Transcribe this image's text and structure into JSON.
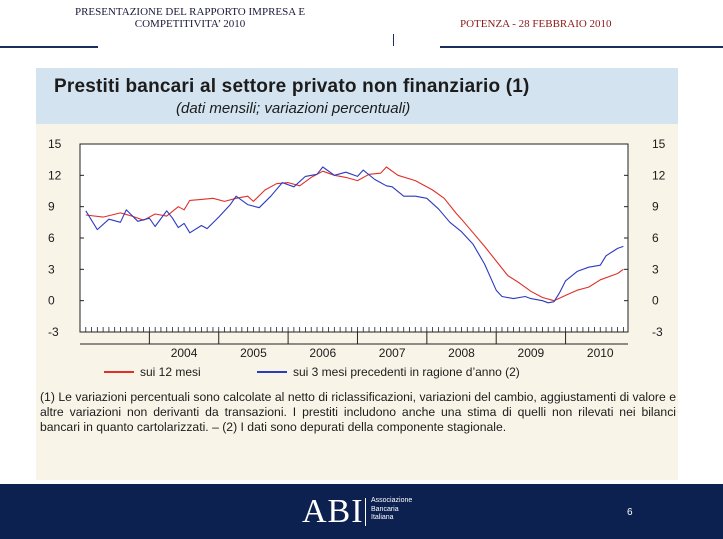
{
  "header": {
    "left_line1": "PRESENTAZIONE DEL RAPPORTO IMPRESA E",
    "left_line2": "COMPETITIVITA’ 2010",
    "right": "POTENZA  - 28 FEBBRAIO 2010"
  },
  "chart_data": {
    "type": "line",
    "title": "Prestiti bancari al settore privato non finanziario (1)",
    "subtitle": "(dati mensili; variazioni percentuali)",
    "xlabel": "",
    "ylabel": "",
    "ylim": [
      -3,
      15
    ],
    "yticks": [
      "15",
      "12",
      "9",
      "6",
      "3",
      "0",
      "-3"
    ],
    "xlim": [
      2003.5,
      2010.75
    ],
    "xticks": [
      {
        "label": "2004",
        "x": 2004.5
      },
      {
        "label": "2005",
        "x": 2005.5
      },
      {
        "label": "2006",
        "x": 2006.5
      },
      {
        "label": "2007",
        "x": 2007.5
      },
      {
        "label": "2008",
        "x": 2008.5
      },
      {
        "label": "2009",
        "x": 2009.5
      },
      {
        "label": "2010",
        "x": 2010.5
      }
    ],
    "grid": false,
    "legend_position": "bottom",
    "series": [
      {
        "name": "sui 12 mesi",
        "color": "#e0302a",
        "points": [
          [
            2003.583,
            8.2
          ],
          [
            2003.833,
            8.0
          ],
          [
            2004.083,
            8.4
          ],
          [
            2004.25,
            8.1
          ],
          [
            2004.417,
            7.7
          ],
          [
            2004.583,
            8.3
          ],
          [
            2004.75,
            8.1
          ],
          [
            2004.917,
            9.0
          ],
          [
            2005.0,
            8.7
          ],
          [
            2005.083,
            9.6
          ],
          [
            2005.25,
            9.7
          ],
          [
            2005.417,
            9.8
          ],
          [
            2005.583,
            9.5
          ],
          [
            2005.75,
            9.8
          ],
          [
            2005.917,
            10.0
          ],
          [
            2006.0,
            9.5
          ],
          [
            2006.167,
            10.6
          ],
          [
            2006.333,
            11.2
          ],
          [
            2006.5,
            11.3
          ],
          [
            2006.667,
            11.0
          ],
          [
            2006.833,
            11.8
          ],
          [
            2007.0,
            12.4
          ],
          [
            2007.167,
            12.0
          ],
          [
            2007.333,
            11.8
          ],
          [
            2007.5,
            11.5
          ],
          [
            2007.667,
            12.1
          ],
          [
            2007.833,
            12.2
          ],
          [
            2007.917,
            12.8
          ],
          [
            2008.083,
            12.0
          ],
          [
            2008.333,
            11.5
          ],
          [
            2008.583,
            10.6
          ],
          [
            2008.75,
            9.8
          ],
          [
            2008.917,
            8.4
          ],
          [
            2009.0,
            7.8
          ],
          [
            2009.167,
            6.5
          ],
          [
            2009.333,
            5.2
          ],
          [
            2009.5,
            3.8
          ],
          [
            2009.667,
            2.4
          ],
          [
            2009.833,
            1.7
          ],
          [
            2010.0,
            0.9
          ],
          [
            2010.167,
            0.3
          ],
          [
            2010.333,
            0.0
          ],
          [
            2010.5,
            0.5
          ],
          [
            2010.667,
            1.0
          ],
          [
            2010.833,
            1.3
          ],
          [
            2011.0,
            2.0
          ],
          [
            2011.25,
            2.6
          ],
          [
            2011.333,
            3.0
          ]
        ]
      },
      {
        "name": "sui 3 mesi precedenti in ragione d’anno (2)",
        "color": "#2a3bbf",
        "points": [
          [
            2003.583,
            8.6
          ],
          [
            2003.75,
            6.8
          ],
          [
            2003.917,
            7.8
          ],
          [
            2004.083,
            7.5
          ],
          [
            2004.167,
            8.7
          ],
          [
            2004.333,
            7.6
          ],
          [
            2004.5,
            7.9
          ],
          [
            2004.583,
            7.1
          ],
          [
            2004.75,
            8.6
          ],
          [
            2004.833,
            7.9
          ],
          [
            2004.917,
            7.0
          ],
          [
            2005.0,
            7.4
          ],
          [
            2005.083,
            6.5
          ],
          [
            2005.25,
            7.2
          ],
          [
            2005.333,
            6.9
          ],
          [
            2005.5,
            8.0
          ],
          [
            2005.667,
            9.2
          ],
          [
            2005.75,
            10.0
          ],
          [
            2005.917,
            9.2
          ],
          [
            2006.083,
            8.9
          ],
          [
            2006.25,
            10.0
          ],
          [
            2006.417,
            11.3
          ],
          [
            2006.583,
            10.9
          ],
          [
            2006.75,
            11.9
          ],
          [
            2006.917,
            12.1
          ],
          [
            2007.0,
            12.8
          ],
          [
            2007.167,
            12.0
          ],
          [
            2007.333,
            12.3
          ],
          [
            2007.5,
            11.9
          ],
          [
            2007.583,
            12.5
          ],
          [
            2007.75,
            11.6
          ],
          [
            2007.917,
            11.0
          ],
          [
            2008.0,
            10.9
          ],
          [
            2008.167,
            10.0
          ],
          [
            2008.333,
            10.0
          ],
          [
            2008.5,
            9.8
          ],
          [
            2008.667,
            8.8
          ],
          [
            2008.833,
            7.5
          ],
          [
            2009.0,
            6.6
          ],
          [
            2009.167,
            5.4
          ],
          [
            2009.333,
            3.5
          ],
          [
            2009.5,
            1.0
          ],
          [
            2009.583,
            0.4
          ],
          [
            2009.75,
            0.2
          ],
          [
            2009.917,
            0.4
          ],
          [
            2010.0,
            0.2
          ],
          [
            2010.167,
            0.0
          ],
          [
            2010.25,
            -0.2
          ],
          [
            2010.333,
            -0.1
          ],
          [
            2010.417,
            0.8
          ],
          [
            2010.5,
            1.9
          ],
          [
            2010.667,
            2.8
          ],
          [
            2010.833,
            3.2
          ],
          [
            2011.0,
            3.4
          ],
          [
            2011.083,
            4.3
          ],
          [
            2011.25,
            5.0
          ],
          [
            2011.333,
            5.2
          ]
        ]
      }
    ]
  },
  "footnote": "(1) Le variazioni percentuali sono calcolate al netto di riclassificazioni, variazioni del cambio, aggiustamenti di valore e altre variazioni non derivanti da transazioni. I prestiti includono anche una stima di quelli non rilevati nei bilanci bancari in quanto cartolarizzati. – (2) I dati sono depurati della componente stagionale.",
  "footer": {
    "logo_text": "ABI",
    "logo_sub_1": "Associazione",
    "logo_sub_2": "Bancaria",
    "logo_sub_3": "Italiana",
    "page_number": "6"
  }
}
